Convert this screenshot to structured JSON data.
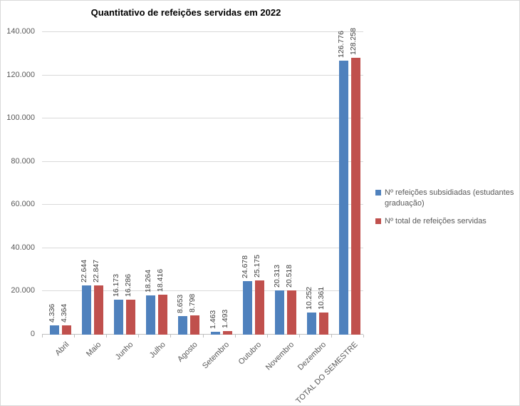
{
  "chart_data": {
    "type": "bar",
    "title": "Quantitativo de refeições servidas em 2022",
    "categories": [
      "Abril",
      "Maio",
      "Junho",
      "Julho",
      "Agosto",
      "Setembro",
      "Outubro",
      "Novembro",
      "Dezembro",
      "TOTAL DO SEMESTRE"
    ],
    "series": [
      {
        "name": "Nº refeições subsidiadas (estudantes graduação)",
        "color": "#4F81BD",
        "values": [
          4336,
          22644,
          16173,
          18264,
          8653,
          1463,
          24678,
          20313,
          10252,
          126776
        ],
        "labels": [
          "4.336",
          "22.644",
          "16.173",
          "18.264",
          "8.653",
          "1.463",
          "24.678",
          "20.313",
          "10.252",
          "126.776"
        ]
      },
      {
        "name": "Nº total de refeições servidas",
        "color": "#C0504D",
        "values": [
          4364,
          22847,
          16286,
          18416,
          8798,
          1493,
          25175,
          20518,
          10361,
          128258
        ],
        "labels": [
          "4.364",
          "22.847",
          "16.286",
          "18.416",
          "8.798",
          "1.493",
          "25.175",
          "20.518",
          "10.361",
          "128.258"
        ]
      }
    ],
    "xlabel": "",
    "ylabel": "",
    "ylim": [
      0,
      140000
    ],
    "ytick_interval": 20000,
    "ytick_labels": [
      "0",
      "20.000",
      "40.000",
      "60.000",
      "80.000",
      "100.000",
      "120.000",
      "140.000"
    ],
    "grid": true,
    "legend_position": "right"
  },
  "colors": {
    "grid": "#D9D9D9",
    "axis_line": "#BFBFBF",
    "axis_text": "#595959",
    "data_label_text": "#404040",
    "series_blue": "#4F81BD",
    "series_red": "#C0504D",
    "border": "#D9D9D9"
  }
}
